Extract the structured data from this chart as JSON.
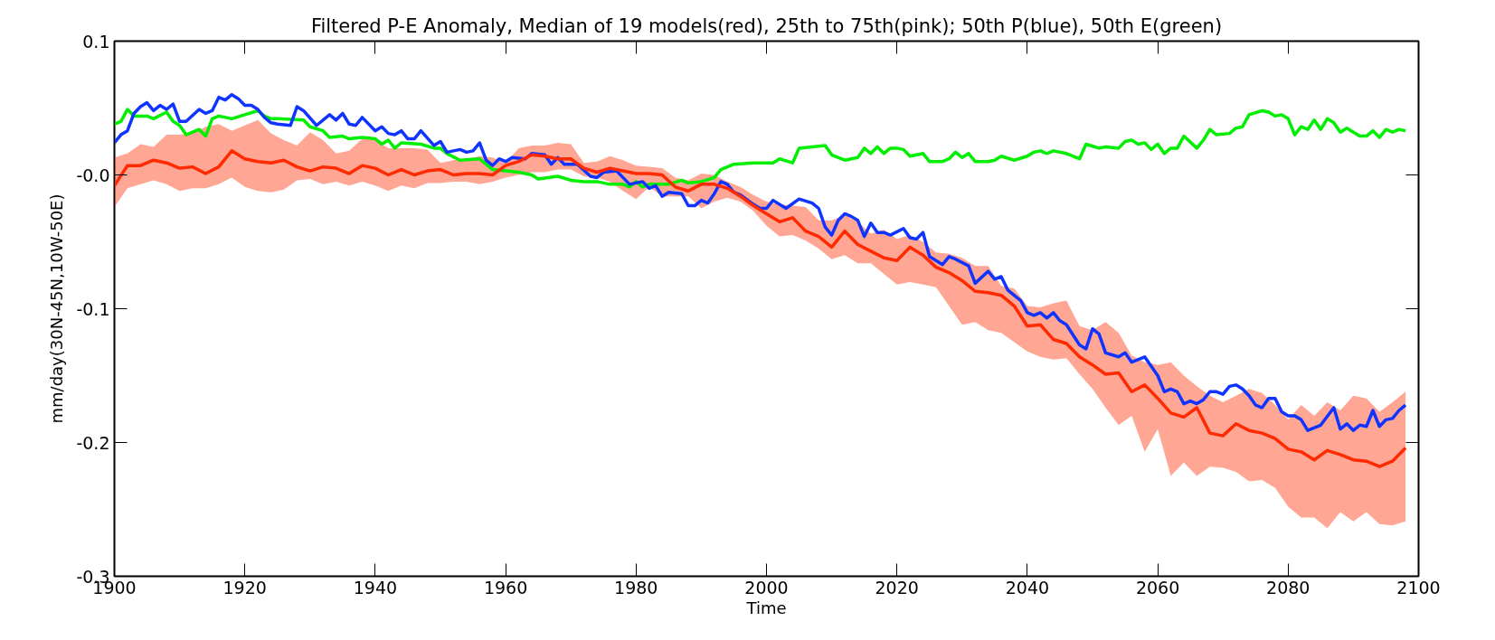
{
  "chart_data": {
    "type": "line",
    "title": "Filtered P-E Anomaly, Median of 19 models(red), 25th to 75th(pink); 50th P(blue), 50th E(green)",
    "xlabel": "Time",
    "ylabel": "mm/day(30N-45N,10W-50E)",
    "xlim": [
      1900,
      2100
    ],
    "xticks": [
      1900,
      1920,
      1940,
      1960,
      1980,
      2000,
      2020,
      2040,
      2060,
      2080,
      2100
    ],
    "ylim": [
      -0.3,
      0.1
    ],
    "yticks": [
      {
        "value": 0.1,
        "label": "0.1"
      },
      {
        "value": 0,
        "label": "-0.0"
      },
      {
        "value": -0.1,
        "label": "-0.1"
      },
      {
        "value": -0.2,
        "label": "-0.2"
      },
      {
        "value": -0.3,
        "label": "-0.3"
      }
    ],
    "grid": false,
    "line_style": "solid",
    "marker": "none",
    "series": [
      {
        "color": "#ff2a00",
        "x": [
          1900,
          1902,
          1904,
          1906,
          1908,
          1910,
          1912,
          1914,
          1916,
          1918,
          1920,
          1922,
          1924,
          1926,
          1928,
          1930,
          1932,
          1934,
          1936,
          1938,
          1940,
          1942,
          1944,
          1946,
          1948,
          1950,
          1952,
          1954,
          1956,
          1958,
          1960,
          1962,
          1964,
          1966,
          1968,
          1970,
          1972,
          1974,
          1976,
          1978,
          1980,
          1982,
          1984,
          1986,
          1988,
          1990,
          1992,
          1994,
          1996,
          1998,
          2000,
          2002,
          2004,
          2006,
          2008,
          2010,
          2012,
          2014,
          2016,
          2018,
          2020,
          2022,
          2024,
          2026,
          2028,
          2030,
          2032,
          2034,
          2036,
          2038,
          2040,
          2042,
          2044,
          2046,
          2048,
          2050,
          2052,
          2054,
          2056,
          2058,
          2060,
          2062,
          2064,
          2066,
          2068,
          2070,
          2072,
          2074,
          2076,
          2078,
          2080,
          2082,
          2084,
          2086,
          2088,
          2090,
          2092,
          2094,
          2096,
          2098
        ],
        "values": [
          -0.008,
          0.007,
          0.007,
          0.011,
          0.009,
          0.005,
          0.006,
          0.001,
          0.006,
          0.018,
          0.012,
          0.01,
          0.009,
          0.011,
          0.006,
          0.003,
          0.006,
          0.005,
          0.001,
          0.007,
          0.005,
          0.0,
          0.004,
          0.0,
          0.003,
          0.004,
          0.0,
          0.001,
          0.001,
          0.0,
          0.007,
          0.01,
          0.015,
          0.014,
          0.012,
          0.012,
          0.005,
          0.002,
          0.005,
          0.003,
          0.001,
          0.001,
          0.0,
          -0.009,
          -0.012,
          -0.007,
          -0.007,
          -0.01,
          -0.016,
          -0.023,
          -0.029,
          -0.035,
          -0.032,
          -0.042,
          -0.046,
          -0.054,
          -0.042,
          -0.052,
          -0.057,
          -0.062,
          -0.064,
          -0.054,
          -0.06,
          -0.069,
          -0.073,
          -0.079,
          -0.087,
          -0.088,
          -0.09,
          -0.098,
          -0.113,
          -0.112,
          -0.123,
          -0.126,
          -0.136,
          -0.142,
          -0.149,
          -0.148,
          -0.162,
          -0.157,
          -0.167,
          -0.178,
          -0.181,
          -0.174,
          -0.193,
          -0.195,
          -0.186,
          -0.191,
          -0.193,
          -0.197,
          -0.205,
          -0.207,
          -0.213,
          -0.206,
          -0.209,
          -0.213,
          -0.214,
          -0.218,
          -0.214,
          -0.204
        ],
        "lower": [
          -0.024,
          -0.01,
          -0.007,
          -0.004,
          -0.007,
          -0.012,
          -0.01,
          -0.01,
          -0.007,
          -0.002,
          -0.009,
          -0.012,
          -0.013,
          -0.011,
          -0.004,
          -0.003,
          -0.007,
          -0.005,
          -0.008,
          -0.005,
          -0.008,
          -0.012,
          -0.008,
          -0.01,
          -0.006,
          -0.006,
          -0.005,
          -0.005,
          -0.007,
          -0.005,
          -0.002,
          0.0,
          0.002,
          0.002,
          0.004,
          0.004,
          -0.001,
          -0.002,
          -0.005,
          -0.012,
          -0.018,
          -0.009,
          -0.016,
          -0.016,
          -0.016,
          -0.025,
          -0.02,
          -0.017,
          -0.02,
          -0.027,
          -0.038,
          -0.046,
          -0.045,
          -0.049,
          -0.055,
          -0.063,
          -0.06,
          -0.066,
          -0.066,
          -0.074,
          -0.082,
          -0.08,
          -0.082,
          -0.084,
          -0.098,
          -0.112,
          -0.11,
          -0.116,
          -0.118,
          -0.125,
          -0.132,
          -0.136,
          -0.138,
          -0.137,
          -0.149,
          -0.16,
          -0.174,
          -0.187,
          -0.18,
          -0.207,
          -0.19,
          -0.225,
          -0.215,
          -0.225,
          -0.218,
          -0.219,
          -0.222,
          -0.229,
          -0.228,
          -0.234,
          -0.248,
          -0.256,
          -0.256,
          -0.264,
          -0.252,
          -0.259,
          -0.252,
          -0.261,
          -0.262,
          -0.259
        ],
        "upper": [
          0.013,
          0.016,
          0.023,
          0.021,
          0.03,
          0.03,
          0.031,
          0.036,
          0.038,
          0.033,
          0.037,
          0.041,
          0.031,
          0.026,
          0.022,
          0.032,
          0.026,
          0.016,
          0.018,
          0.027,
          0.026,
          0.02,
          0.02,
          0.02,
          0.019,
          0.009,
          0.011,
          0.012,
          0.014,
          0.013,
          0.009,
          0.02,
          0.022,
          0.022,
          0.024,
          0.023,
          0.009,
          0.01,
          0.014,
          0.011,
          0.007,
          0.006,
          0.005,
          -0.002,
          -0.004,
          0.001,
          0.0,
          -0.005,
          -0.009,
          -0.015,
          -0.02,
          -0.022,
          -0.023,
          -0.024,
          -0.034,
          -0.034,
          -0.03,
          -0.035,
          -0.044,
          -0.041,
          -0.048,
          -0.045,
          -0.05,
          -0.058,
          -0.059,
          -0.062,
          -0.068,
          -0.068,
          -0.083,
          -0.085,
          -0.098,
          -0.099,
          -0.096,
          -0.094,
          -0.113,
          -0.116,
          -0.11,
          -0.118,
          -0.135,
          -0.14,
          -0.142,
          -0.14,
          -0.15,
          -0.158,
          -0.165,
          -0.17,
          -0.165,
          -0.16,
          -0.163,
          -0.172,
          -0.183,
          -0.172,
          -0.18,
          -0.17,
          -0.176,
          -0.165,
          -0.167,
          -0.177,
          -0.17,
          -0.162
        ]
      },
      {
        "color": "#1034ff",
        "x": [
          1900,
          1901,
          1902,
          1903,
          1904,
          1905,
          1906,
          1907,
          1908,
          1909,
          1910,
          1911,
          1913,
          1914,
          1915,
          1916,
          1917,
          1918,
          1919,
          1920,
          1921,
          1922,
          1923,
          1924,
          1925,
          1927,
          1928,
          1929,
          1931,
          1933,
          1934,
          1935,
          1936,
          1937,
          1938,
          1940,
          1941,
          1942,
          1943,
          1944,
          1945,
          1946,
          1947,
          1949,
          1950,
          1951,
          1953,
          1954,
          1955,
          1956,
          1957,
          1958,
          1959,
          1960,
          1961,
          1963,
          1964,
          1966,
          1967,
          1968,
          1969,
          1971,
          1973,
          1974,
          1975,
          1977,
          1979,
          1981,
          1982,
          1983,
          1984,
          1985,
          1987,
          1988,
          1989,
          1990,
          1991,
          1992,
          1993,
          1994,
          1995,
          1996,
          1998,
          1999,
          2000,
          2001,
          2003,
          2005,
          2007,
          2008,
          2009,
          2010,
          2011,
          2012,
          2013,
          2014,
          2015,
          2016,
          2017,
          2018,
          2019,
          2021,
          2022,
          2023,
          2024,
          2025,
          2026,
          2027,
          2028,
          2029,
          2031,
          2032,
          2034,
          2035,
          2036,
          2037,
          2039,
          2040,
          2041,
          2042,
          2043,
          2044,
          2045,
          2046,
          2048,
          2049,
          2050,
          2051,
          2052,
          2054,
          2055,
          2056,
          2058,
          2060,
          2061,
          2062,
          2063,
          2064,
          2065,
          2066,
          2067,
          2068,
          2069,
          2070,
          2071,
          2072,
          2073,
          2074,
          2075,
          2076,
          2077,
          2078,
          2079,
          2080,
          2081,
          2082,
          2083,
          2085,
          2087,
          2088,
          2089,
          2090,
          2091,
          2092,
          2093,
          2094,
          2095,
          2096,
          2097,
          2098
        ],
        "values": [
          0.024,
          0.03,
          0.033,
          0.046,
          0.051,
          0.054,
          0.048,
          0.052,
          0.049,
          0.053,
          0.04,
          0.04,
          0.049,
          0.046,
          0.048,
          0.058,
          0.056,
          0.06,
          0.057,
          0.052,
          0.052,
          0.049,
          0.043,
          0.039,
          0.038,
          0.037,
          0.051,
          0.048,
          0.037,
          0.045,
          0.041,
          0.046,
          0.038,
          0.037,
          0.043,
          0.033,
          0.036,
          0.031,
          0.03,
          0.033,
          0.027,
          0.027,
          0.033,
          0.022,
          0.025,
          0.017,
          0.019,
          0.017,
          0.018,
          0.024,
          0.011,
          0.007,
          0.012,
          0.01,
          0.013,
          0.012,
          0.016,
          0.015,
          0.008,
          0.013,
          0.008,
          0.008,
          -0.001,
          -0.002,
          0.002,
          0.003,
          -0.007,
          -0.005,
          -0.01,
          -0.008,
          -0.016,
          -0.013,
          -0.014,
          -0.023,
          -0.023,
          -0.019,
          -0.021,
          -0.014,
          -0.005,
          -0.007,
          -0.013,
          -0.015,
          -0.022,
          -0.025,
          -0.025,
          -0.019,
          -0.025,
          -0.018,
          -0.021,
          -0.025,
          -0.039,
          -0.045,
          -0.034,
          -0.029,
          -0.031,
          -0.034,
          -0.046,
          -0.036,
          -0.043,
          -0.043,
          -0.045,
          -0.04,
          -0.047,
          -0.048,
          -0.043,
          -0.061,
          -0.064,
          -0.067,
          -0.061,
          -0.063,
          -0.068,
          -0.081,
          -0.072,
          -0.078,
          -0.076,
          -0.086,
          -0.094,
          -0.103,
          -0.105,
          -0.103,
          -0.107,
          -0.103,
          -0.109,
          -0.112,
          -0.127,
          -0.13,
          -0.115,
          -0.119,
          -0.133,
          -0.136,
          -0.133,
          -0.14,
          -0.136,
          -0.15,
          -0.162,
          -0.16,
          -0.162,
          -0.171,
          -0.169,
          -0.171,
          -0.168,
          -0.162,
          -0.162,
          -0.164,
          -0.158,
          -0.157,
          -0.16,
          -0.165,
          -0.172,
          -0.174,
          -0.167,
          -0.167,
          -0.177,
          -0.18,
          -0.18,
          -0.183,
          -0.191,
          -0.187,
          -0.174,
          -0.19,
          -0.186,
          -0.191,
          -0.187,
          -0.188,
          -0.176,
          -0.188,
          -0.183,
          -0.182,
          -0.176,
          -0.172
        ]
      },
      {
        "color": "#00ee00",
        "x": [
          1900,
          1901,
          1902,
          1903,
          1905,
          1906,
          1908,
          1909,
          1910,
          1911,
          1913,
          1914,
          1915,
          1916,
          1918,
          1920,
          1922,
          1923,
          1924,
          1925,
          1929,
          1930,
          1932,
          1933,
          1935,
          1936,
          1938,
          1940,
          1941,
          1942,
          1943,
          1944,
          1947,
          1949,
          1950,
          1951,
          1953,
          1956,
          1957,
          1958,
          1962,
          1964,
          1965,
          1968,
          1970,
          1972,
          1974,
          1976,
          1978,
          1979,
          1980,
          1981,
          1982,
          1985,
          1987,
          1988,
          1990,
          1992,
          1993,
          1995,
          1998,
          2001,
          2002,
          2004,
          2005,
          2007,
          2009,
          2010,
          2012,
          2014,
          2015,
          2016,
          2017,
          2018,
          2019,
          2020,
          2021,
          2022,
          2024,
          2025,
          2027,
          2028,
          2029,
          2030,
          2031,
          2032,
          2034,
          2035,
          2036,
          2038,
          2040,
          2041,
          2042,
          2043,
          2044,
          2046,
          2048,
          2049,
          2051,
          2052,
          2054,
          2055,
          2056,
          2057,
          2058,
          2059,
          2060,
          2061,
          2062,
          2063,
          2064,
          2066,
          2067,
          2068,
          2069,
          2071,
          2072,
          2073,
          2074,
          2076,
          2077,
          2078,
          2079,
          2080,
          2081,
          2082,
          2083,
          2084,
          2085,
          2086,
          2087,
          2088,
          2089,
          2090,
          2091,
          2092,
          2093,
          2094,
          2095,
          2096,
          2097,
          2098
        ],
        "values": [
          0.038,
          0.04,
          0.049,
          0.044,
          0.044,
          0.042,
          0.047,
          0.04,
          0.037,
          0.03,
          0.034,
          0.029,
          0.042,
          0.044,
          0.042,
          0.045,
          0.048,
          0.044,
          0.042,
          0.042,
          0.041,
          0.036,
          0.033,
          0.028,
          0.029,
          0.027,
          0.028,
          0.027,
          0.023,
          0.026,
          0.02,
          0.024,
          0.023,
          0.02,
          0.02,
          0.016,
          0.011,
          0.012,
          0.008,
          0.004,
          0.002,
          0.0,
          -0.003,
          -0.001,
          -0.004,
          -0.005,
          -0.005,
          -0.007,
          -0.007,
          -0.009,
          -0.005,
          -0.009,
          -0.007,
          -0.007,
          -0.004,
          -0.006,
          -0.005,
          -0.002,
          0.004,
          0.008,
          0.009,
          0.009,
          0.012,
          0.009,
          0.02,
          0.021,
          0.022,
          0.015,
          0.011,
          0.013,
          0.02,
          0.016,
          0.021,
          0.016,
          0.02,
          0.02,
          0.019,
          0.014,
          0.016,
          0.01,
          0.01,
          0.012,
          0.017,
          0.013,
          0.016,
          0.01,
          0.01,
          0.011,
          0.014,
          0.011,
          0.014,
          0.017,
          0.018,
          0.016,
          0.018,
          0.016,
          0.012,
          0.023,
          0.02,
          0.021,
          0.02,
          0.025,
          0.026,
          0.023,
          0.024,
          0.019,
          0.023,
          0.016,
          0.02,
          0.02,
          0.029,
          0.02,
          0.026,
          0.034,
          0.03,
          0.031,
          0.035,
          0.036,
          0.045,
          0.048,
          0.047,
          0.044,
          0.045,
          0.042,
          0.03,
          0.036,
          0.034,
          0.041,
          0.034,
          0.042,
          0.039,
          0.032,
          0.035,
          0.032,
          0.029,
          0.029,
          0.033,
          0.028,
          0.034,
          0.032,
          0.034,
          0.033
        ]
      }
    ]
  }
}
